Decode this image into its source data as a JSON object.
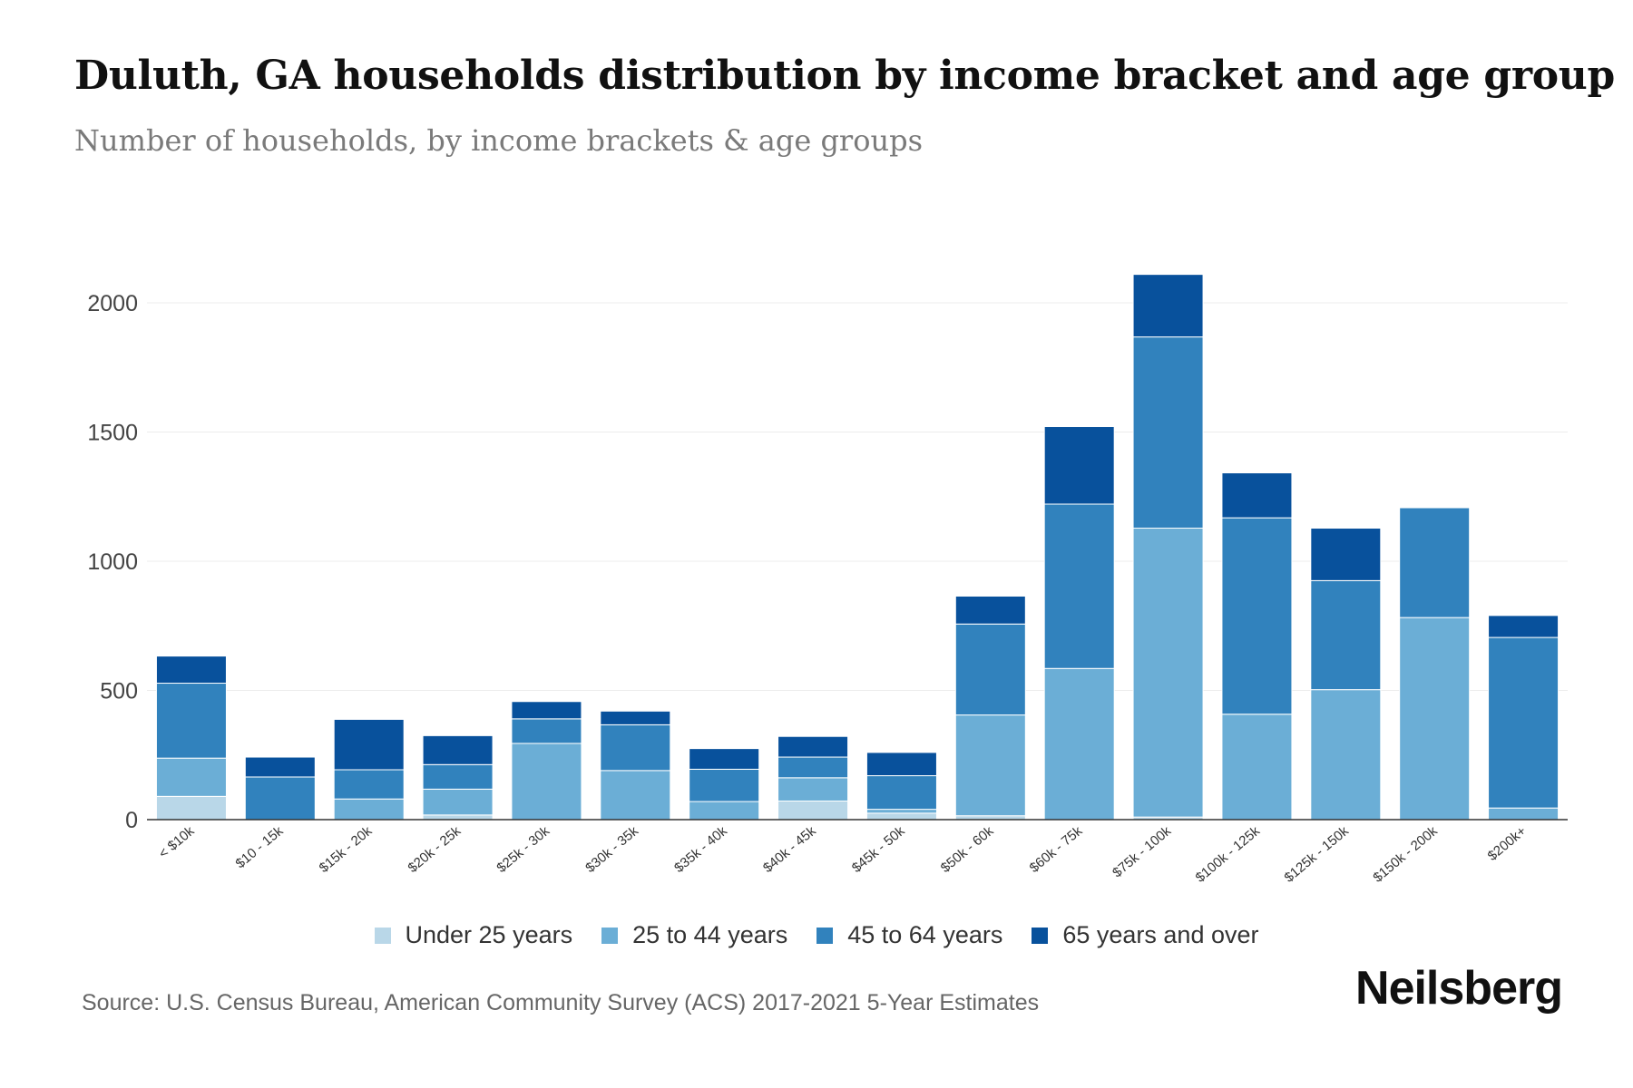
{
  "chart_data": {
    "type": "bar",
    "stacked": true,
    "title": "Duluth, GA households distribution by income bracket and age group",
    "subtitle": "Number of households, by income brackets & age groups",
    "xlabel": "",
    "ylabel": "",
    "ylim": [
      0,
      2100
    ],
    "yticks": [
      0,
      500,
      1000,
      1500,
      2000
    ],
    "grid": true,
    "legend_position": "bottom",
    "categories": [
      "< $10k",
      "$10 - 15k",
      "$15k - 20k",
      "$20k - 25k",
      "$25k - 30k",
      "$30k - 35k",
      "$35k - 40k",
      "$40k - 45k",
      "$45k - 50k",
      "$50k - 60k",
      "$60k - 75k",
      "$75k - 100k",
      "$100k - 125k",
      "$125k - 150k",
      "$150k - 200k",
      "$200k+"
    ],
    "series": [
      {
        "name": "Under 25 years",
        "color": "#b9d7e8",
        "values": [
          90,
          0,
          0,
          18,
          0,
          0,
          0,
          72,
          25,
          15,
          0,
          10,
          0,
          0,
          0,
          0
        ]
      },
      {
        "name": "25 to 44 years",
        "color": "#6baed6",
        "values": [
          148,
          0,
          80,
          100,
          295,
          190,
          70,
          90,
          15,
          390,
          585,
          1118,
          408,
          503,
          782,
          45
        ]
      },
      {
        "name": "45 to 64 years",
        "color": "#3182bd",
        "values": [
          290,
          165,
          113,
          95,
          95,
          177,
          125,
          80,
          130,
          352,
          636,
          740,
          760,
          422,
          425,
          660
        ]
      },
      {
        "name": "65 years and over",
        "color": "#08519c",
        "values": [
          105,
          77,
          195,
          112,
          67,
          53,
          80,
          80,
          90,
          108,
          300,
          242,
          174,
          203,
          0,
          85
        ]
      }
    ]
  },
  "footer": {
    "source": "Source: U.S. Census Bureau, American Community Survey (ACS) 2017-2021 5-Year Estimates",
    "brand": "Neilsberg"
  }
}
